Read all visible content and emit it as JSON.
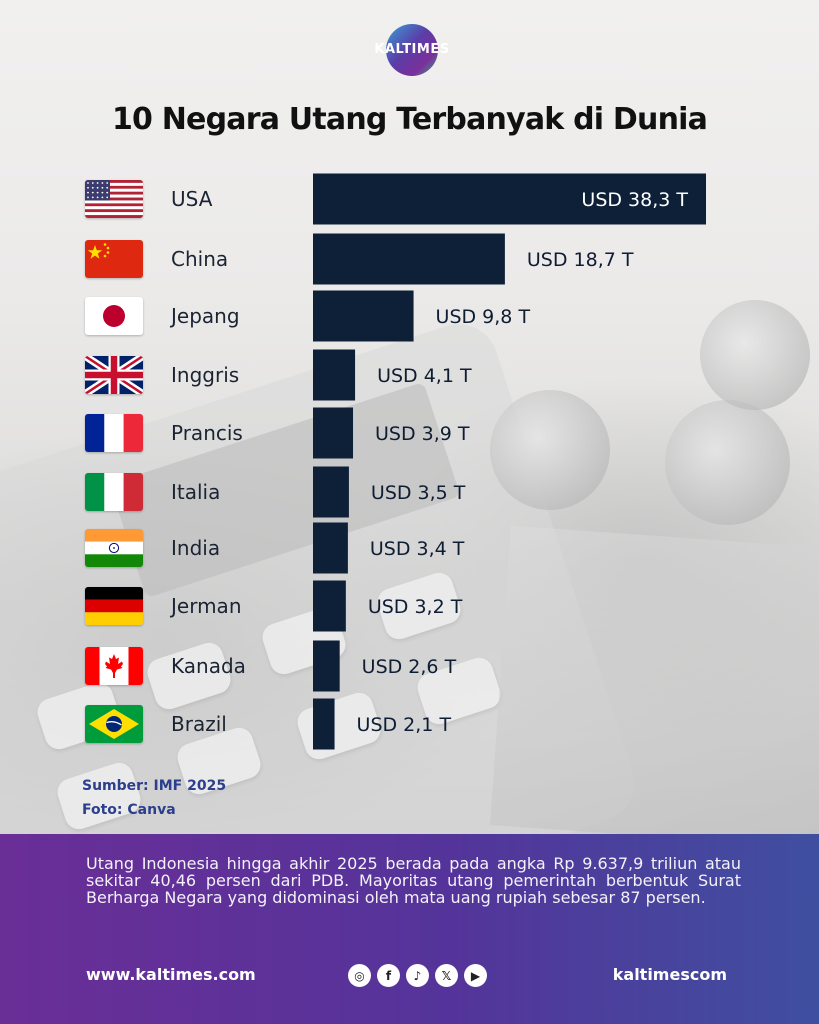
{
  "brand": {
    "logo_text": "KALTIMES"
  },
  "chart_data": {
    "type": "bar",
    "orientation": "horizontal",
    "title": "10 Negara Utang Terbanyak di Dunia",
    "categories": [
      "USA",
      "China",
      "Jepang",
      "Inggris",
      "Prancis",
      "Italia",
      "India",
      "Jerman",
      "Kanada",
      "Brazil"
    ],
    "values": [
      38.3,
      18.7,
      9.8,
      4.1,
      3.9,
      3.5,
      3.4,
      3.2,
      2.6,
      2.1
    ],
    "value_labels": [
      "USD 38,3 T",
      "USD 18,7 T",
      "USD 9,8 T",
      "USD 4,1 T",
      "USD 3,9 T",
      "USD 3,5 T",
      "USD 3,4 T",
      "USD 3,2 T",
      "USD 2,6 T",
      "USD 2,1 T"
    ],
    "flags": [
      "us-flag-icon",
      "cn-flag-icon",
      "jp-flag-icon",
      "gb-flag-icon",
      "fr-flag-icon",
      "it-flag-icon",
      "in-flag-icon",
      "de-flag-icon",
      "ca-flag-icon",
      "br-flag-icon"
    ],
    "bar_color": "#0e1f38",
    "xlabel": "",
    "ylabel": "",
    "grid": false
  },
  "credits": {
    "source": "Sumber: IMF 2025",
    "photo": "Foto: Canva"
  },
  "footer": {
    "description": "Utang Indonesia hingga akhir 2025 berada pada angka Rp 9.637,9 triliun atau sekitar 40,46 persen dari PDB. Mayoritas utang pemerintah berbentuk Surat Berharga Negara yang didominasi oleh mata uang rupiah sebesar 87 persen.",
    "website": "www.kaltimes.com",
    "handle": "kaltimescom",
    "social_icons": [
      "instagram-icon",
      "facebook-icon",
      "tiktok-icon",
      "x-icon",
      "youtube-icon"
    ],
    "gradient": [
      "#6a2e97",
      "#3f4fa0"
    ]
  }
}
